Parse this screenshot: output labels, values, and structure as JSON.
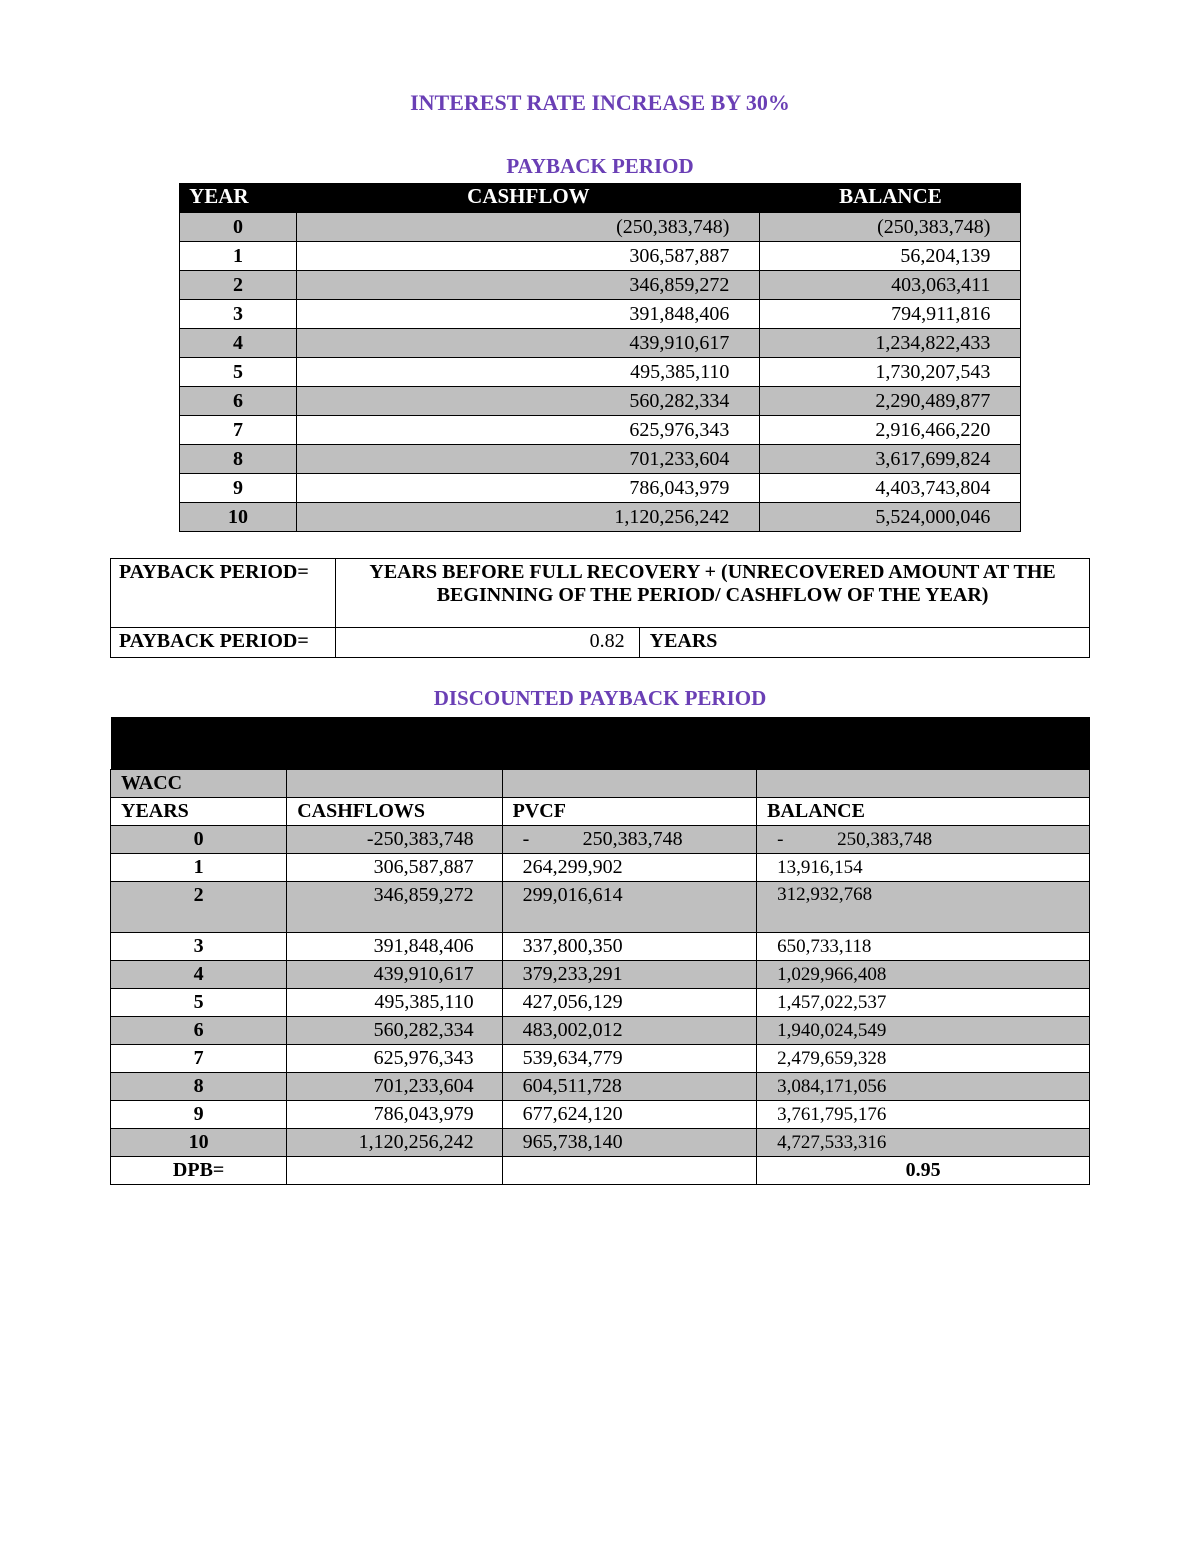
{
  "colors": {
    "heading": "#6a3fb5",
    "header_bg": "#000000",
    "header_text": "#ffffff",
    "row_grey": "#bfbfbf",
    "row_white": "#ffffff",
    "border": "#000000",
    "page_bg": "#ffffff"
  },
  "typography": {
    "family": "Times New Roman",
    "title_size_pt": 17,
    "body_size_pt": 15
  },
  "title": "INTEREST RATE INCREASE BY 30%",
  "payback": {
    "heading": "PAYBACK PERIOD",
    "columns": [
      "YEAR",
      "CASHFLOW",
      "BALANCE"
    ],
    "rows": [
      {
        "year": "0",
        "cashflow": "(250,383,748)",
        "balance": "(250,383,748)",
        "grey": true
      },
      {
        "year": "1",
        "cashflow": "306,587,887",
        "balance": "56,204,139",
        "grey": false
      },
      {
        "year": "2",
        "cashflow": "346,859,272",
        "balance": "403,063,411",
        "grey": true
      },
      {
        "year": "3",
        "cashflow": "391,848,406",
        "balance": "794,911,816",
        "grey": false
      },
      {
        "year": "4",
        "cashflow": "439,910,617",
        "balance": "1,234,822,433",
        "grey": true
      },
      {
        "year": "5",
        "cashflow": "495,385,110",
        "balance": "1,730,207,543",
        "grey": false
      },
      {
        "year": "6",
        "cashflow": "560,282,334",
        "balance": "2,290,489,877",
        "grey": true
      },
      {
        "year": "7",
        "cashflow": "625,976,343",
        "balance": "2,916,466,220",
        "grey": false
      },
      {
        "year": "8",
        "cashflow": "701,233,604",
        "balance": "3,617,699,824",
        "grey": true
      },
      {
        "year": "9",
        "cashflow": "786,043,979",
        "balance": "4,403,743,804",
        "grey": false
      },
      {
        "year": "10",
        "cashflow": "1,120,256,242",
        "balance": "5,524,000,046",
        "grey": true
      }
    ]
  },
  "formula": {
    "label": "PAYBACK PERIOD=",
    "description": "YEARS BEFORE FULL RECOVERY + (UNRECOVERED AMOUNT AT THE BEGINNING OF THE PERIOD/ CASHFLOW OF THE YEAR)",
    "result_label": "PAYBACK PERIOD=",
    "result_value": "0.82",
    "result_unit": "YEARS"
  },
  "discounted": {
    "heading": "DISCOUNTED PAYBACK PERIOD",
    "wacc_label": "WACC",
    "columns": [
      "YEARS",
      "CASHFLOWS",
      "PVCF",
      "BALANCE"
    ],
    "rows": [
      {
        "year": "0",
        "cashflow": "-250,383,748",
        "pvcf_neg": true,
        "pvcf": "250,383,748",
        "bal_neg": true,
        "balance": "250,383,748",
        "grey": true
      },
      {
        "year": "1",
        "cashflow": "306,587,887",
        "pvcf": "264,299,902",
        "balance": "13,916,154",
        "grey": false
      },
      {
        "year": "2",
        "cashflow": "346,859,272",
        "pvcf": "299,016,614",
        "balance": "312,932,768",
        "grey": true,
        "tall": true
      },
      {
        "year": "3",
        "cashflow": "391,848,406",
        "pvcf": "337,800,350",
        "balance": "650,733,118",
        "grey": false
      },
      {
        "year": "4",
        "cashflow": "439,910,617",
        "pvcf": "379,233,291",
        "balance": "1,029,966,408",
        "grey": true
      },
      {
        "year": "5",
        "cashflow": "495,385,110",
        "pvcf": "427,056,129",
        "balance": "1,457,022,537",
        "grey": false
      },
      {
        "year": "6",
        "cashflow": "560,282,334",
        "pvcf": "483,002,012",
        "balance": "1,940,024,549",
        "grey": true
      },
      {
        "year": "7",
        "cashflow": "625,976,343",
        "pvcf": "539,634,779",
        "balance": "2,479,659,328",
        "grey": false
      },
      {
        "year": "8",
        "cashflow": "701,233,604",
        "pvcf": "604,511,728",
        "balance": "3,084,171,056",
        "grey": true
      },
      {
        "year": "9",
        "cashflow": "786,043,979",
        "pvcf": "677,624,120",
        "balance": "3,761,795,176",
        "grey": false
      },
      {
        "year": "10",
        "cashflow": "1,120,256,242",
        "pvcf": "965,738,140",
        "balance": "4,727,533,316",
        "grey": true
      }
    ],
    "dpb_label": "DPB=",
    "dpb_value": "0.95"
  }
}
